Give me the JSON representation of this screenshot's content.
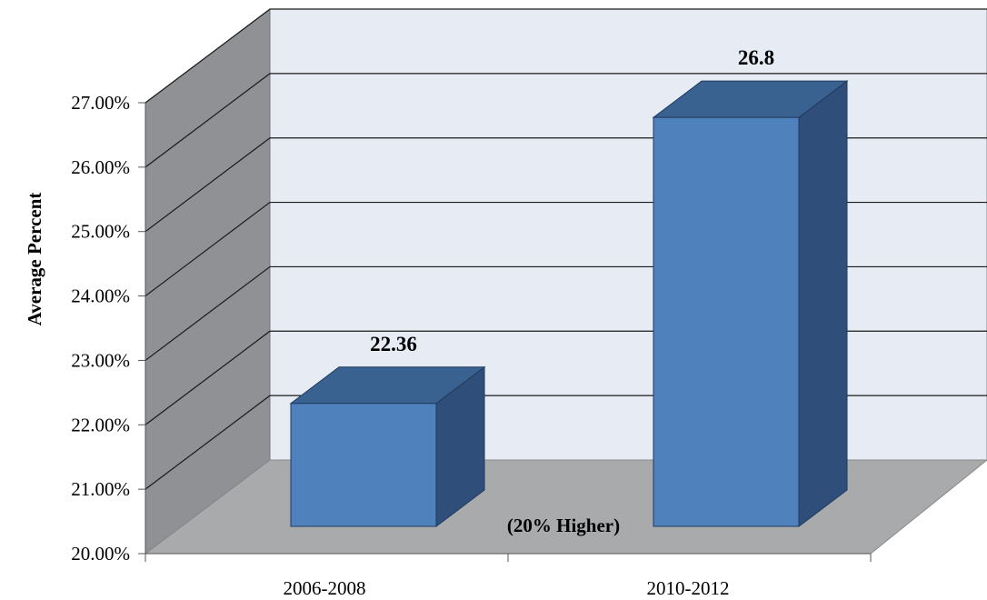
{
  "chart_data": {
    "type": "bar",
    "title": "",
    "xlabel": "",
    "ylabel": "Average Percent",
    "categories": [
      "2006-2008",
      "2010-2012"
    ],
    "values": [
      22.36,
      26.8
    ],
    "data_labels": [
      "22.36",
      "26.8"
    ],
    "ylim": [
      20,
      27
    ],
    "yticks": [
      20,
      21,
      22,
      23,
      24,
      25,
      26,
      27
    ],
    "ytick_labels": [
      "20.00%",
      "21.00%",
      "22.00%",
      "23.00%",
      "24.00%",
      "25.00%",
      "26.00%",
      "27.00%"
    ],
    "grid": true,
    "style": "3d-column",
    "annotation": "(20% Higher)",
    "colors": {
      "bar_front": "#4f81bd",
      "bar_top": "#3a6291",
      "bar_side": "#2f4f7a",
      "back_wall": "#e6ebf4",
      "side_wall": "#8f9194",
      "floor": "#a8aaac",
      "gridline": "#1a1a1a"
    }
  }
}
